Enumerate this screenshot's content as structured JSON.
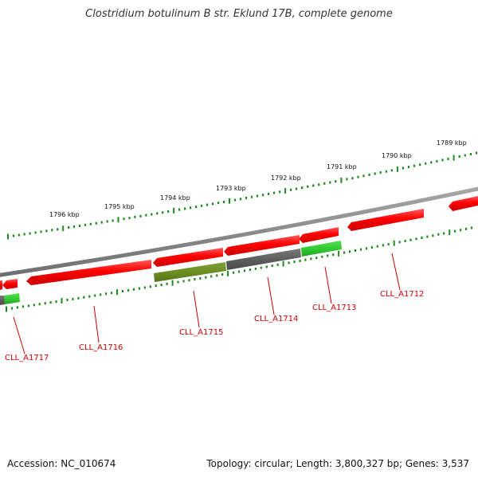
{
  "title": "Clostridium botulinum B str. Eklund 17B, complete genome",
  "footer": {
    "accession": "Accession: NC_010674",
    "summary": "Topology: circular; Length: 3,800,327 bp; Genes: 3,537"
  },
  "colors": {
    "backbone": "#8a8a8a",
    "tick": "#1e8a1e",
    "gene_forward": "#ff1a1a",
    "gene_reverse_green": "#33cc33",
    "gene_reverse_gray": "#666666",
    "gene_reverse_olive": "#6b8e23",
    "label": "#cc0000"
  },
  "axis": {
    "labels": [
      "1789 kbp",
      "1790 kbp",
      "1791 kbp",
      "1792 kbp",
      "1793 kbp",
      "1794 kbp",
      "1795 kbp",
      "1796 kbp"
    ]
  },
  "genes": [
    {
      "label": "CLL_A1712",
      "strand": "forward",
      "color": "red"
    },
    {
      "label": "CLL_A1713",
      "strand": "reverse",
      "color": "green"
    },
    {
      "label": "CLL_A1714",
      "strand": "reverse",
      "color": "gray"
    },
    {
      "label": "CLL_A1715",
      "strand": "reverse",
      "color": "olive"
    },
    {
      "label": "CLL_A1716",
      "strand": "forward",
      "color": "red"
    },
    {
      "label": "CLL_A1717",
      "strand": "forward",
      "color": "red"
    }
  ]
}
